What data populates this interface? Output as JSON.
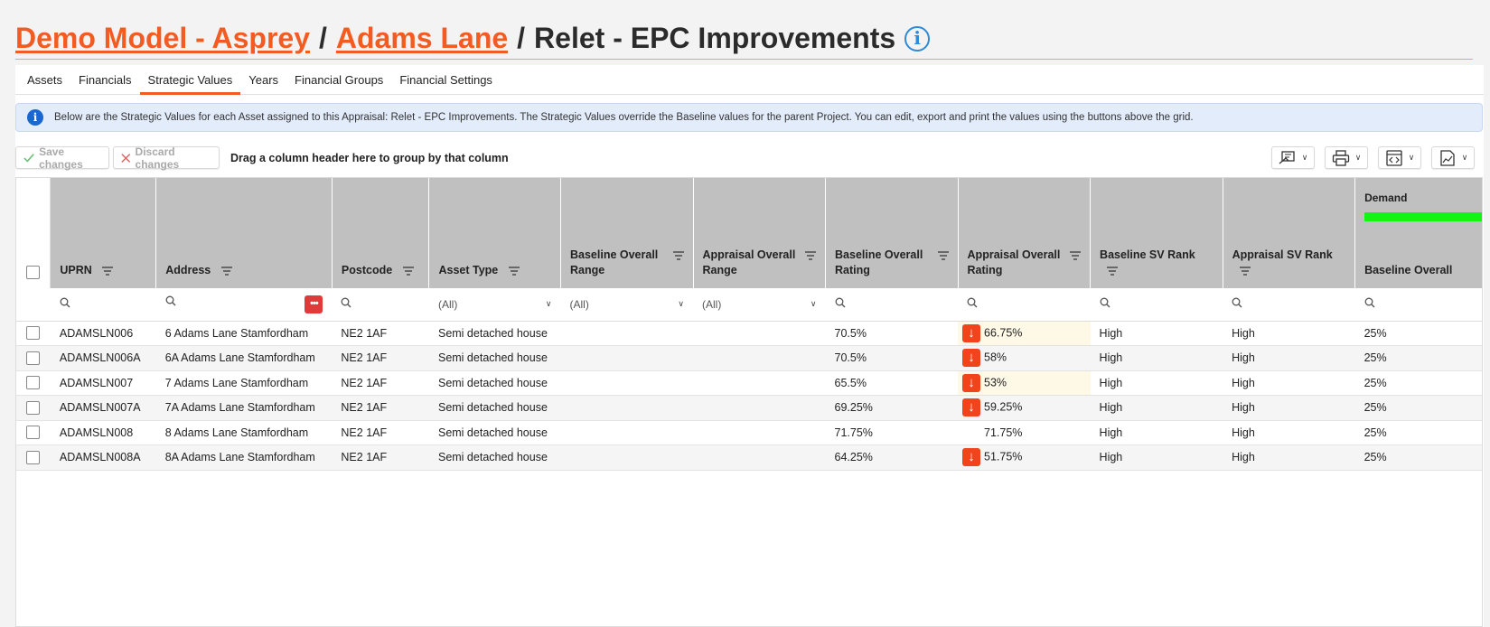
{
  "breadcrumb": {
    "model": "Demo Model - Asprey",
    "sep1": "/",
    "site": "Adams Lane",
    "sep2": "/",
    "current": "Relet - EPC Improvements",
    "info_icon": "info-icon"
  },
  "tabs": [
    {
      "label": "Assets"
    },
    {
      "label": "Financials"
    },
    {
      "label": "Strategic Values",
      "active": true
    },
    {
      "label": "Years"
    },
    {
      "label": "Financial Groups"
    },
    {
      "label": "Financial Settings"
    }
  ],
  "banner": {
    "icon": "info-icon",
    "text": "Below are the Strategic Values for each Asset assigned to this Appraisal: Relet - EPC Improvements. The Strategic Values override the Baseline values for the parent Project. You can edit, export and print the values using the buttons above the grid."
  },
  "toolbar": {
    "save_label": "Save changes",
    "discard_label": "Discard changes",
    "group_hint": "Drag a column header here to group by that column"
  },
  "columns": {
    "uprn": "UPRN",
    "address": "Address",
    "postcode": "Postcode",
    "asset_type": "Asset Type",
    "baseline_range": "Baseline Overall Range",
    "appraisal_range": "Appraisal Overall Range",
    "baseline_rating": "Baseline Overall Rating",
    "appraisal_rating": "Appraisal Overall Rating",
    "baseline_sv": "Baseline SV Rank",
    "appraisal_sv": "Appraisal SV Rank",
    "baseline_overall": "Baseline Overall",
    "group_demand": "Demand"
  },
  "filters": {
    "asset_type": "(All)",
    "baseline_range": "(All)",
    "appraisal_range": "(All)"
  },
  "rows": [
    {
      "uprn": "ADAMSLN006",
      "address": "6 Adams Lane Stamfordham",
      "postcode": "NE2 1AF",
      "type": "Semi detached house",
      "b_rating": "70.5%",
      "a_rating": "66.75%",
      "b_sv": "High",
      "a_sv": "High",
      "b_overall": "25%"
    },
    {
      "uprn": "ADAMSLN006A",
      "address": "6A Adams Lane Stamfordham",
      "postcode": "NE2 1AF",
      "type": "Semi detached house",
      "b_rating": "70.5%",
      "a_rating": "58%",
      "b_sv": "High",
      "a_sv": "High",
      "b_overall": "25%"
    },
    {
      "uprn": "ADAMSLN007",
      "address": "7 Adams Lane Stamfordham",
      "postcode": "NE2 1AF",
      "type": "Semi detached house",
      "b_rating": "65.5%",
      "a_rating": "53%",
      "b_sv": "High",
      "a_sv": "High",
      "b_overall": "25%"
    },
    {
      "uprn": "ADAMSLN007A",
      "address": "7A Adams Lane Stamfordham",
      "postcode": "NE2 1AF",
      "type": "Semi detached house",
      "b_rating": "69.25%",
      "a_rating": "59.25%",
      "b_sv": "High",
      "a_sv": "High",
      "b_overall": "25%"
    },
    {
      "uprn": "ADAMSLN008",
      "address": "8 Adams Lane Stamfordham",
      "postcode": "NE2 1AF",
      "type": "Semi detached house",
      "b_rating": "71.75%",
      "a_rating": "71.75%",
      "b_sv": "High",
      "a_sv": "High",
      "b_overall": "25%"
    },
    {
      "uprn": "ADAMSLN008A",
      "address": "8A Adams Lane Stamfordham",
      "postcode": "NE2 1AF",
      "type": "Semi detached house",
      "b_rating": "64.25%",
      "a_rating": "51.75%",
      "b_sv": "High",
      "a_sv": "High",
      "b_overall": "25%"
    }
  ],
  "colors": {
    "accent": "#f25c23",
    "header_bg": "#c0c0c0",
    "demand_bar": "#14f514",
    "down_flag": "#f1441d",
    "highlight": "#fef8e6"
  }
}
